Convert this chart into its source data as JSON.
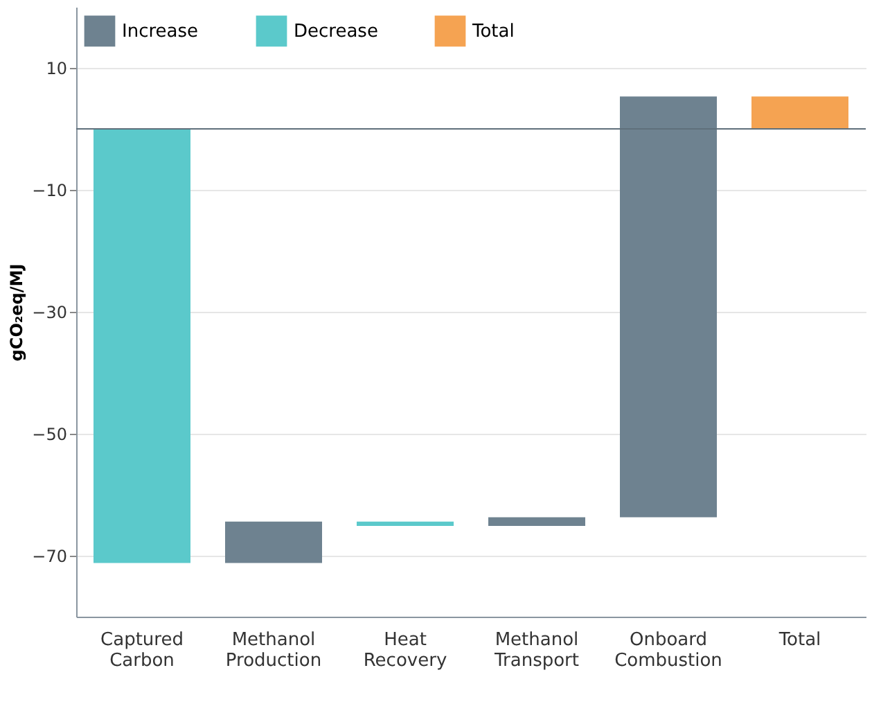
{
  "chart_data": {
    "type": "bar",
    "ylabel": "gCO₂eq/MJ",
    "categories": [
      "Captured Carbon",
      "Methanol Production",
      "Heat Recovery",
      "Methanol Transport",
      "Onboard Combustion",
      "Total"
    ],
    "series": [
      {
        "name": "Increase",
        "color": "#6e8290",
        "values": [
          null,
          6.8,
          null,
          1.4,
          69.0,
          null
        ],
        "base": [
          null,
          -71.2,
          null,
          -65.1,
          -63.7,
          null
        ]
      },
      {
        "name": "Decrease",
        "color": "#5bc9cb",
        "values": [
          -71.2,
          null,
          -0.7,
          null,
          null,
          null
        ],
        "base": [
          0,
          null,
          -64.4,
          null,
          null,
          null
        ]
      },
      {
        "name": "Total",
        "color": "#f5a352",
        "values": [
          null,
          null,
          null,
          null,
          null,
          5.3
        ],
        "base": [
          null,
          null,
          null,
          null,
          null,
          0
        ]
      }
    ],
    "ylim": [
      -80,
      20
    ],
    "yticks": [
      10,
      -10,
      -30,
      -50,
      -70
    ],
    "ref_lines": [
      {
        "axis": "y",
        "value": 0,
        "color": "#5f6f7b"
      }
    ],
    "grid": "y",
    "legend": "top left"
  }
}
